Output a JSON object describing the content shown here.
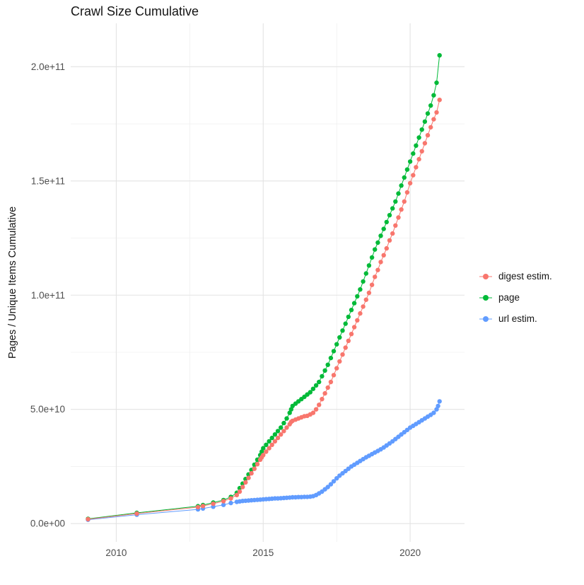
{
  "chart": {
    "title": "Crawl Size Cumulative",
    "ylabel": "Pages / Unique Items Cumulative",
    "xlabel": ""
  },
  "legend": {
    "items": [
      {
        "label": "digest estim.",
        "color": "#F8766D"
      },
      {
        "label": "page",
        "color": "#00BA38"
      },
      {
        "label": "url estim.",
        "color": "#619CFF"
      }
    ]
  },
  "chart_data": {
    "type": "scatter",
    "title": "Crawl Size Cumulative",
    "xlabel": "",
    "ylabel": "Pages / Unique Items Cumulative",
    "y_unit": "pages, values stored in billions (multiply by 1e9)",
    "grid": true,
    "legend_position": "right",
    "xlim": [
      2008.45,
      2021.85
    ],
    "ylim": [
      -8,
      219
    ],
    "x_ticks": [
      {
        "value": 2010,
        "label": "2010"
      },
      {
        "value": 2015,
        "label": "2015"
      },
      {
        "value": 2020,
        "label": "2020"
      }
    ],
    "x_minor_ticks": [
      2012.5,
      2017.5
    ],
    "y_ticks": [
      {
        "value": 0,
        "label": "0.0e+00"
      },
      {
        "value": 50,
        "label": "5.0e+10"
      },
      {
        "value": 100,
        "label": "1.0e+11"
      },
      {
        "value": 150,
        "label": "1.5e+11"
      },
      {
        "value": 200,
        "label": "2.0e+11"
      }
    ],
    "y_minor_ticks": [
      25,
      75,
      125,
      175
    ],
    "series": [
      {
        "name": "digest estim.",
        "color": "#F8766D",
        "points": [
          [
            2009.04,
            1.9
          ],
          [
            2010.7,
            4.4
          ],
          [
            2012.78,
            7.2
          ],
          [
            2012.95,
            7.7
          ],
          [
            2013.3,
            8.7
          ],
          [
            2013.65,
            9.8
          ],
          [
            2013.9,
            11
          ],
          [
            2014.1,
            12.5
          ],
          [
            2014.2,
            14
          ],
          [
            2014.3,
            16
          ],
          [
            2014.4,
            18
          ],
          [
            2014.5,
            20
          ],
          [
            2014.6,
            22
          ],
          [
            2014.7,
            24
          ],
          [
            2014.8,
            26
          ],
          [
            2014.9,
            28
          ],
          [
            2014.95,
            29
          ],
          [
            2015.0,
            30
          ],
          [
            2015.1,
            31.5
          ],
          [
            2015.2,
            33
          ],
          [
            2015.3,
            34.5
          ],
          [
            2015.4,
            36
          ],
          [
            2015.5,
            37.5
          ],
          [
            2015.6,
            39
          ],
          [
            2015.7,
            40.5
          ],
          [
            2015.8,
            42
          ],
          [
            2015.9,
            43.5
          ],
          [
            2015.95,
            44.5
          ],
          [
            2016.0,
            45
          ],
          [
            2016.1,
            45.5
          ],
          [
            2016.2,
            46
          ],
          [
            2016.3,
            46.5
          ],
          [
            2016.4,
            47
          ],
          [
            2016.5,
            47.2
          ],
          [
            2016.6,
            47.8
          ],
          [
            2016.7,
            48.5
          ],
          [
            2016.8,
            50
          ],
          [
            2016.9,
            52
          ],
          [
            2017.0,
            54.5
          ],
          [
            2017.1,
            57
          ],
          [
            2017.2,
            59.5
          ],
          [
            2017.3,
            62
          ],
          [
            2017.4,
            65
          ],
          [
            2017.5,
            68
          ],
          [
            2017.6,
            71
          ],
          [
            2017.7,
            74
          ],
          [
            2017.8,
            77
          ],
          [
            2017.9,
            80
          ],
          [
            2018.0,
            83
          ],
          [
            2018.1,
            86
          ],
          [
            2018.2,
            89
          ],
          [
            2018.3,
            92
          ],
          [
            2018.4,
            95
          ],
          [
            2018.5,
            98
          ],
          [
            2018.6,
            101
          ],
          [
            2018.7,
            104.5
          ],
          [
            2018.8,
            108
          ],
          [
            2018.9,
            111
          ],
          [
            2019.0,
            114.5
          ],
          [
            2019.1,
            117.5
          ],
          [
            2019.2,
            120.5
          ],
          [
            2019.3,
            124
          ],
          [
            2019.4,
            127
          ],
          [
            2019.5,
            130.5
          ],
          [
            2019.6,
            134
          ],
          [
            2019.7,
            137.5
          ],
          [
            2019.8,
            141
          ],
          [
            2019.9,
            145
          ],
          [
            2020.0,
            149
          ],
          [
            2020.1,
            152.5
          ],
          [
            2020.2,
            156
          ],
          [
            2020.3,
            159.5
          ],
          [
            2020.4,
            163
          ],
          [
            2020.5,
            166.5
          ],
          [
            2020.6,
            170
          ],
          [
            2020.7,
            173.5
          ],
          [
            2020.8,
            177
          ],
          [
            2020.9,
            180
          ],
          [
            2021.0,
            185.5
          ]
        ]
      },
      {
        "name": "page",
        "color": "#00BA38",
        "points": [
          [
            2009.04,
            2.1
          ],
          [
            2010.7,
            4.7
          ],
          [
            2012.78,
            7.6
          ],
          [
            2012.95,
            8.1
          ],
          [
            2013.3,
            9.2
          ],
          [
            2013.65,
            10.3
          ],
          [
            2013.9,
            11.7
          ],
          [
            2014.1,
            13.5
          ],
          [
            2014.2,
            15.5
          ],
          [
            2014.3,
            17.5
          ],
          [
            2014.4,
            19.5
          ],
          [
            2014.5,
            21.5
          ],
          [
            2014.6,
            23.5
          ],
          [
            2014.7,
            25.8
          ],
          [
            2014.8,
            28
          ],
          [
            2014.9,
            30
          ],
          [
            2014.95,
            31.5
          ],
          [
            2015.0,
            33
          ],
          [
            2015.1,
            34.5
          ],
          [
            2015.2,
            36
          ],
          [
            2015.3,
            37.5
          ],
          [
            2015.4,
            39
          ],
          [
            2015.5,
            40.5
          ],
          [
            2015.6,
            42
          ],
          [
            2015.7,
            44
          ],
          [
            2015.8,
            46
          ],
          [
            2015.9,
            48.5
          ],
          [
            2015.95,
            50
          ],
          [
            2016.0,
            51.5
          ],
          [
            2016.1,
            52.5
          ],
          [
            2016.2,
            53.5
          ],
          [
            2016.3,
            54.5
          ],
          [
            2016.4,
            55.5
          ],
          [
            2016.5,
            56.5
          ],
          [
            2016.6,
            57.5
          ],
          [
            2016.7,
            59
          ],
          [
            2016.8,
            60.5
          ],
          [
            2016.9,
            62
          ],
          [
            2017.0,
            64.5
          ],
          [
            2017.1,
            67
          ],
          [
            2017.2,
            69.5
          ],
          [
            2017.3,
            72.5
          ],
          [
            2017.4,
            75.5
          ],
          [
            2017.5,
            78.5
          ],
          [
            2017.6,
            81.5
          ],
          [
            2017.7,
            84.5
          ],
          [
            2017.8,
            87.5
          ],
          [
            2017.9,
            90.5
          ],
          [
            2018.0,
            93.5
          ],
          [
            2018.1,
            96.5
          ],
          [
            2018.2,
            99.5
          ],
          [
            2018.3,
            102.5
          ],
          [
            2018.4,
            106
          ],
          [
            2018.5,
            109.5
          ],
          [
            2018.6,
            113
          ],
          [
            2018.7,
            116.5
          ],
          [
            2018.8,
            120
          ],
          [
            2018.9,
            123
          ],
          [
            2019.0,
            126
          ],
          [
            2019.1,
            129
          ],
          [
            2019.2,
            132
          ],
          [
            2019.3,
            135
          ],
          [
            2019.4,
            138
          ],
          [
            2019.5,
            141
          ],
          [
            2019.6,
            144.5
          ],
          [
            2019.7,
            148
          ],
          [
            2019.8,
            151.5
          ],
          [
            2019.9,
            155
          ],
          [
            2020.0,
            158.5
          ],
          [
            2020.1,
            162
          ],
          [
            2020.2,
            165.5
          ],
          [
            2020.3,
            169
          ],
          [
            2020.4,
            172.5
          ],
          [
            2020.5,
            176
          ],
          [
            2020.6,
            179.5
          ],
          [
            2020.7,
            183
          ],
          [
            2020.8,
            187.5
          ],
          [
            2020.9,
            193
          ],
          [
            2021.0,
            205
          ]
        ]
      },
      {
        "name": "url estim.",
        "color": "#619CFF",
        "points": [
          [
            2009.04,
            1.7
          ],
          [
            2010.7,
            3.9
          ],
          [
            2012.78,
            6.2
          ],
          [
            2012.95,
            6.6
          ],
          [
            2013.3,
            7.4
          ],
          [
            2013.65,
            8.2
          ],
          [
            2013.9,
            9
          ],
          [
            2014.1,
            9.5
          ],
          [
            2014.2,
            9.7
          ],
          [
            2014.3,
            9.9
          ],
          [
            2014.4,
            10
          ],
          [
            2014.5,
            10.1
          ],
          [
            2014.6,
            10.2
          ],
          [
            2014.7,
            10.3
          ],
          [
            2014.8,
            10.4
          ],
          [
            2014.9,
            10.5
          ],
          [
            2015.0,
            10.6
          ],
          [
            2015.1,
            10.7
          ],
          [
            2015.2,
            10.8
          ],
          [
            2015.3,
            10.9
          ],
          [
            2015.4,
            11
          ],
          [
            2015.5,
            11
          ],
          [
            2015.6,
            11.1
          ],
          [
            2015.7,
            11.2
          ],
          [
            2015.8,
            11.3
          ],
          [
            2015.9,
            11.4
          ],
          [
            2016.0,
            11.5
          ],
          [
            2016.1,
            11.5
          ],
          [
            2016.2,
            11.6
          ],
          [
            2016.3,
            11.6
          ],
          [
            2016.4,
            11.7
          ],
          [
            2016.5,
            11.7
          ],
          [
            2016.6,
            11.8
          ],
          [
            2016.7,
            12
          ],
          [
            2016.8,
            12.5
          ],
          [
            2016.9,
            13.2
          ],
          [
            2017.0,
            14
          ],
          [
            2017.1,
            15
          ],
          [
            2017.2,
            16
          ],
          [
            2017.3,
            17.2
          ],
          [
            2017.4,
            18.5
          ],
          [
            2017.5,
            19.8
          ],
          [
            2017.6,
            21
          ],
          [
            2017.7,
            22
          ],
          [
            2017.8,
            23
          ],
          [
            2017.9,
            24
          ],
          [
            2018.0,
            25
          ],
          [
            2018.1,
            25.8
          ],
          [
            2018.2,
            26.6
          ],
          [
            2018.3,
            27.4
          ],
          [
            2018.4,
            28.2
          ],
          [
            2018.5,
            29
          ],
          [
            2018.6,
            29.7
          ],
          [
            2018.7,
            30.4
          ],
          [
            2018.8,
            31.1
          ],
          [
            2018.9,
            31.8
          ],
          [
            2019.0,
            32.5
          ],
          [
            2019.1,
            33.3
          ],
          [
            2019.2,
            34.2
          ],
          [
            2019.3,
            35.1
          ],
          [
            2019.4,
            36
          ],
          [
            2019.5,
            37
          ],
          [
            2019.6,
            38
          ],
          [
            2019.7,
            39
          ],
          [
            2019.8,
            40
          ],
          [
            2019.9,
            41
          ],
          [
            2020.0,
            42
          ],
          [
            2020.1,
            42.8
          ],
          [
            2020.2,
            43.6
          ],
          [
            2020.3,
            44.4
          ],
          [
            2020.4,
            45.2
          ],
          [
            2020.5,
            46
          ],
          [
            2020.6,
            46.8
          ],
          [
            2020.7,
            47.6
          ],
          [
            2020.8,
            48.5
          ],
          [
            2020.9,
            50
          ],
          [
            2020.95,
            51.5
          ],
          [
            2021.0,
            53.5
          ]
        ]
      }
    ]
  }
}
